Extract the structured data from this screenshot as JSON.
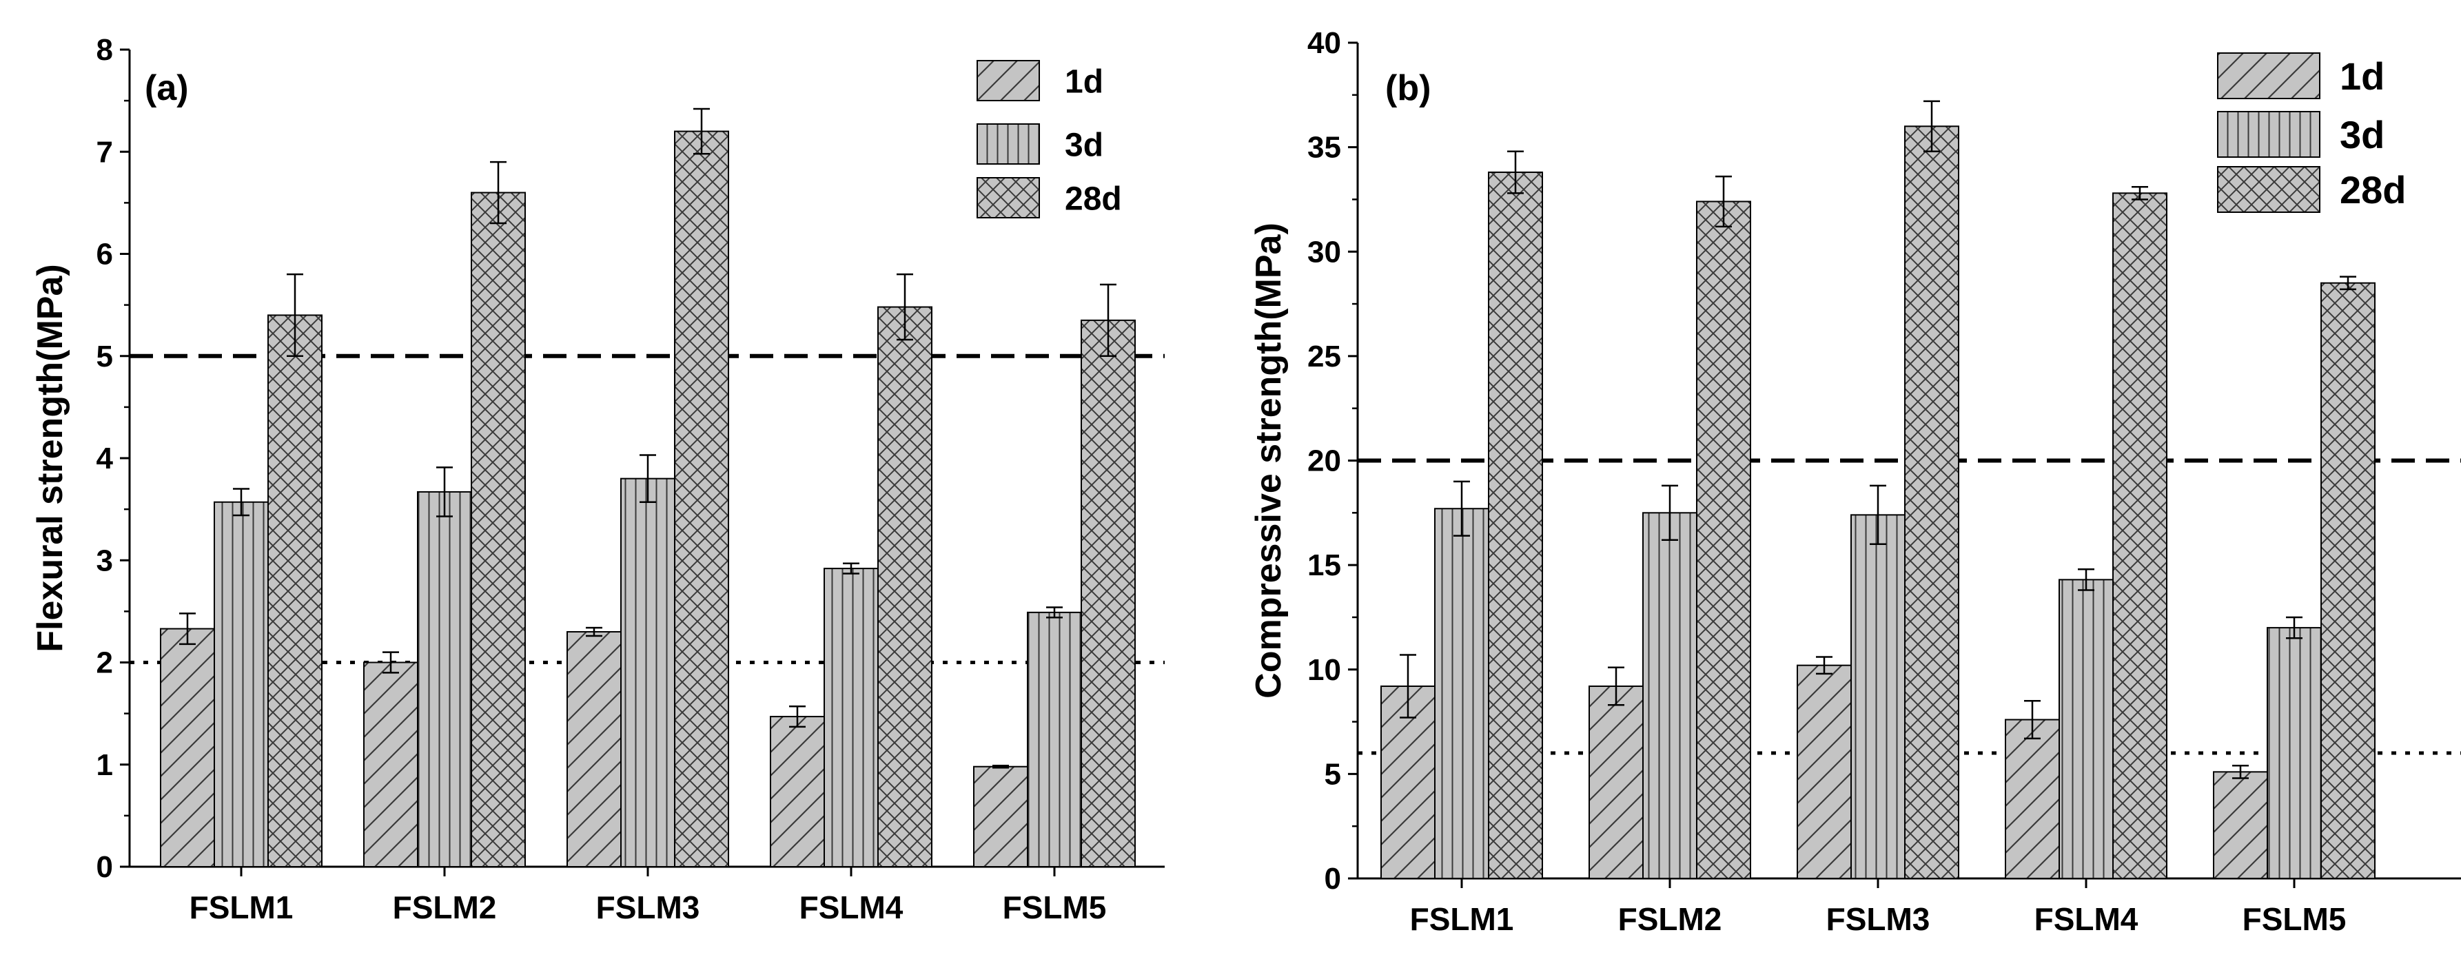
{
  "chart_data": [
    {
      "type": "bar",
      "panel_label": "(a)",
      "title": "",
      "xlabel": "",
      "ylabel": "Flexural strength(MPa)",
      "categories": [
        "FSLM1",
        "FSLM2",
        "FSLM3",
        "FSLM4",
        "FSLM5"
      ],
      "ylim": [
        0,
        8
      ],
      "yticks": [
        0,
        1,
        2,
        3,
        4,
        5,
        6,
        7,
        8
      ],
      "ytick_labels": [
        "0",
        "1",
        "2",
        "3",
        "4",
        "5",
        "6",
        "7",
        "8"
      ],
      "legend_position": "top-right",
      "series": [
        {
          "name": "1d",
          "pattern": "diagonal",
          "values": [
            2.33,
            2.0,
            2.3,
            1.47,
            0.98
          ],
          "errors": [
            0.15,
            0.1,
            0.04,
            0.1,
            0.01
          ]
        },
        {
          "name": "3d",
          "pattern": "vertical",
          "values": [
            3.57,
            3.67,
            3.8,
            2.92,
            2.49
          ],
          "errors": [
            0.13,
            0.24,
            0.23,
            0.05,
            0.05
          ]
        },
        {
          "name": "28d",
          "pattern": "crosshatch",
          "values": [
            5.4,
            6.6,
            7.2,
            5.48,
            5.35
          ],
          "errors": [
            0.4,
            0.3,
            0.22,
            0.32,
            0.35
          ]
        }
      ],
      "reference_lines": [
        {
          "value": 5,
          "style": "dashed"
        },
        {
          "value": 2,
          "style": "dotted"
        }
      ]
    },
    {
      "type": "bar",
      "panel_label": "(b)",
      "title": "",
      "xlabel": "",
      "ylabel": "Compressive strength(MPa)",
      "categories": [
        "FSLM1",
        "FSLM2",
        "FSLM3",
        "FSLM4",
        "FSLM5"
      ],
      "ylim": [
        0,
        40
      ],
      "yticks": [
        0,
        5,
        10,
        15,
        20,
        25,
        30,
        35,
        40
      ],
      "ytick_labels": [
        "0",
        "5",
        "10",
        "15",
        "20",
        "25",
        "30",
        "35",
        "40"
      ],
      "legend_position": "top-right",
      "series": [
        {
          "name": "1d",
          "pattern": "diagonal",
          "values": [
            9.2,
            9.2,
            10.2,
            7.6,
            5.1
          ],
          "errors": [
            1.5,
            0.9,
            0.4,
            0.9,
            0.3
          ]
        },
        {
          "name": "3d",
          "pattern": "vertical",
          "values": [
            17.7,
            17.5,
            17.4,
            14.3,
            12.0
          ],
          "errors": [
            1.3,
            1.3,
            1.4,
            0.5,
            0.5
          ]
        },
        {
          "name": "28d",
          "pattern": "crosshatch",
          "values": [
            33.8,
            32.4,
            36.0,
            32.8,
            28.5
          ],
          "errors": [
            1.0,
            1.2,
            1.2,
            0.3,
            0.3
          ]
        }
      ],
      "reference_lines": [
        {
          "value": 20,
          "style": "dashed"
        },
        {
          "value": 6,
          "style": "dotted"
        }
      ]
    }
  ]
}
